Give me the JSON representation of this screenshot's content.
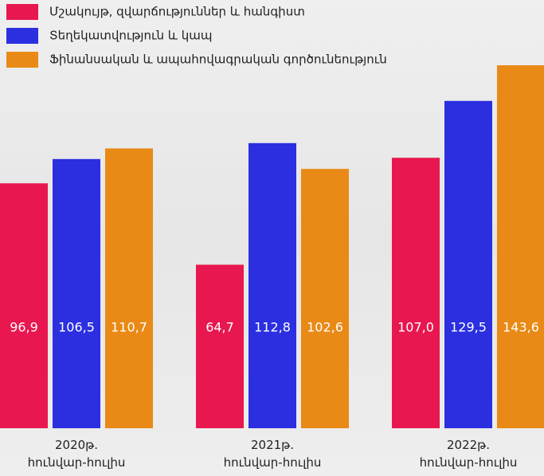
{
  "chart_data": {
    "type": "bar",
    "categories": [
      "2020թ. հունվար-հուլիս",
      "2021թ. հունվար-հուլիս",
      "2022թ. հունվար-հուլիս"
    ],
    "series": [
      {
        "name": "Մշակույթ, զվարճություններ և հանգիստ",
        "color": "#e8174f",
        "values": [
          96.9,
          64.7,
          107.0
        ],
        "value_labels": [
          "96,9",
          "64,7",
          "107,0"
        ]
      },
      {
        "name": "Տեղեկատվություն և կապ",
        "color": "#2b2fe0",
        "values": [
          106.5,
          112.8,
          129.5
        ],
        "value_labels": [
          "106,5",
          "112,8",
          "129,5"
        ]
      },
      {
        "name": "Ֆինանսական և ապահովագրական գործունեություն",
        "color": "#e98a16",
        "values": [
          110.7,
          102.6,
          143.6
        ],
        "value_labels": [
          "110,7",
          "102,6",
          "143,6"
        ]
      }
    ],
    "legend": "top-left"
  }
}
